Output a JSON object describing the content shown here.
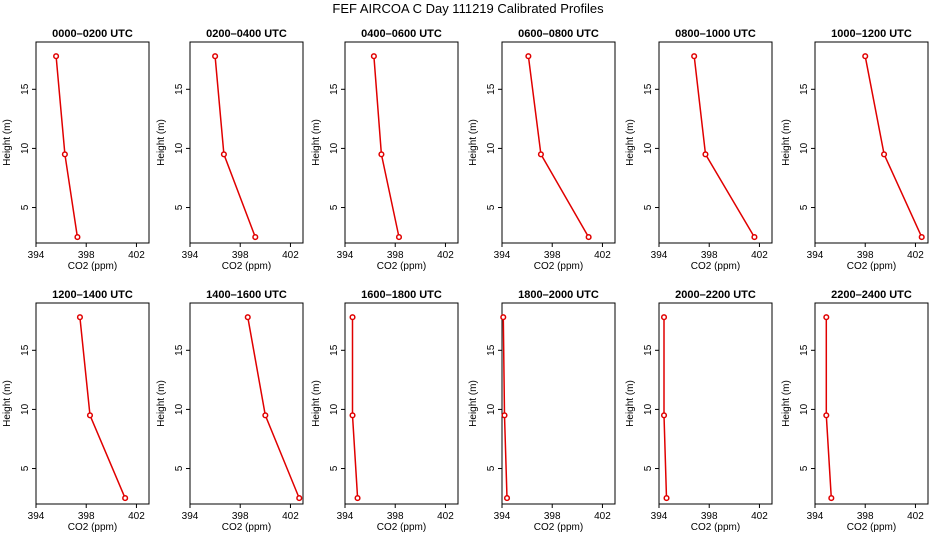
{
  "figure": {
    "title": "FEF AIRCOA C  Day 111219  Calibrated Profiles"
  },
  "chart_data": [
    {
      "type": "line",
      "title": "0000–0200 UTC",
      "xlabel": "CO2 (ppm)",
      "ylabel": "Height (m)",
      "xlim": [
        394,
        403
      ],
      "ylim": [
        2,
        19
      ],
      "xticks": [
        394,
        398,
        402
      ],
      "yticks": [
        5,
        10,
        15
      ],
      "grid": false,
      "series": [
        {
          "x": [
            395.6,
            396.3,
            397.3
          ],
          "y": [
            17.8,
            9.5,
            2.5
          ]
        }
      ]
    },
    {
      "type": "line",
      "title": "0200–0400 UTC",
      "xlabel": "CO2 (ppm)",
      "ylabel": "Height (m)",
      "xlim": [
        394,
        403
      ],
      "ylim": [
        2,
        19
      ],
      "xticks": [
        394,
        398,
        402
      ],
      "yticks": [
        5,
        10,
        15
      ],
      "grid": false,
      "series": [
        {
          "x": [
            396.0,
            396.7,
            399.2
          ],
          "y": [
            17.8,
            9.5,
            2.5
          ]
        }
      ]
    },
    {
      "type": "line",
      "title": "0400–0600 UTC",
      "xlabel": "CO2 (ppm)",
      "ylabel": "Height (m)",
      "xlim": [
        394,
        403
      ],
      "ylim": [
        2,
        19
      ],
      "xticks": [
        394,
        398,
        402
      ],
      "yticks": [
        5,
        10,
        15
      ],
      "grid": false,
      "series": [
        {
          "x": [
            396.3,
            396.9,
            398.3
          ],
          "y": [
            17.8,
            9.5,
            2.5
          ]
        }
      ]
    },
    {
      "type": "line",
      "title": "0600–0800 UTC",
      "xlabel": "CO2 (ppm)",
      "ylabel": "Height (m)",
      "xlim": [
        394,
        403
      ],
      "ylim": [
        2,
        19
      ],
      "xticks": [
        394,
        398,
        402
      ],
      "yticks": [
        5,
        10,
        15
      ],
      "grid": false,
      "series": [
        {
          "x": [
            396.1,
            397.1,
            400.9
          ],
          "y": [
            17.8,
            9.5,
            2.5
          ]
        }
      ]
    },
    {
      "type": "line",
      "title": "0800–1000 UTC",
      "xlabel": "CO2 (ppm)",
      "ylabel": "Height (m)",
      "xlim": [
        394,
        403
      ],
      "ylim": [
        2,
        19
      ],
      "xticks": [
        394,
        398,
        402
      ],
      "yticks": [
        5,
        10,
        15
      ],
      "grid": false,
      "series": [
        {
          "x": [
            396.8,
            397.7,
            401.6
          ],
          "y": [
            17.8,
            9.5,
            2.5
          ]
        }
      ]
    },
    {
      "type": "line",
      "title": "1000–1200 UTC",
      "xlabel": "CO2 (ppm)",
      "ylabel": "Height (m)",
      "xlim": [
        394,
        403
      ],
      "ylim": [
        2,
        19
      ],
      "xticks": [
        394,
        398,
        402
      ],
      "yticks": [
        5,
        10,
        15
      ],
      "grid": false,
      "series": [
        {
          "x": [
            398.0,
            399.5,
            402.5
          ],
          "y": [
            17.8,
            9.5,
            2.5
          ]
        }
      ]
    },
    {
      "type": "line",
      "title": "1200–1400 UTC",
      "xlabel": "CO2 (ppm)",
      "ylabel": "Height (m)",
      "xlim": [
        394,
        403
      ],
      "ylim": [
        2,
        19
      ],
      "xticks": [
        394,
        398,
        402
      ],
      "yticks": [
        5,
        10,
        15
      ],
      "grid": false,
      "series": [
        {
          "x": [
            397.5,
            398.3,
            401.1
          ],
          "y": [
            17.8,
            9.5,
            2.5
          ]
        }
      ]
    },
    {
      "type": "line",
      "title": "1400–1600 UTC",
      "xlabel": "CO2 (ppm)",
      "ylabel": "Height (m)",
      "xlim": [
        394,
        403
      ],
      "ylim": [
        2,
        19
      ],
      "xticks": [
        394,
        398,
        402
      ],
      "yticks": [
        5,
        10,
        15
      ],
      "grid": false,
      "series": [
        {
          "x": [
            398.6,
            400.0,
            402.7
          ],
          "y": [
            17.8,
            9.5,
            2.5
          ]
        }
      ]
    },
    {
      "type": "line",
      "title": "1600–1800 UTC",
      "xlabel": "CO2 (ppm)",
      "ylabel": "Height (m)",
      "xlim": [
        394,
        403
      ],
      "ylim": [
        2,
        19
      ],
      "xticks": [
        394,
        398,
        402
      ],
      "yticks": [
        5,
        10,
        15
      ],
      "grid": false,
      "series": [
        {
          "x": [
            394.6,
            394.6,
            395.0
          ],
          "y": [
            17.8,
            9.5,
            2.5
          ]
        }
      ]
    },
    {
      "type": "line",
      "title": "1800–2000 UTC",
      "xlabel": "CO2 (ppm)",
      "ylabel": "Height (m)",
      "xlim": [
        394,
        403
      ],
      "ylim": [
        2,
        19
      ],
      "xticks": [
        394,
        398,
        402
      ],
      "yticks": [
        5,
        10,
        15
      ],
      "grid": false,
      "series": [
        {
          "x": [
            394.1,
            394.2,
            394.4
          ],
          "y": [
            17.8,
            9.5,
            2.5
          ]
        }
      ]
    },
    {
      "type": "line",
      "title": "2000–2200 UTC",
      "xlabel": "CO2 (ppm)",
      "ylabel": "Height (m)",
      "xlim": [
        394,
        403
      ],
      "ylim": [
        2,
        19
      ],
      "xticks": [
        394,
        398,
        402
      ],
      "yticks": [
        5,
        10,
        15
      ],
      "grid": false,
      "series": [
        {
          "x": [
            394.4,
            394.4,
            394.6
          ],
          "y": [
            17.8,
            9.5,
            2.5
          ]
        }
      ]
    },
    {
      "type": "line",
      "title": "2200–2400 UTC",
      "xlabel": "CO2 (ppm)",
      "ylabel": "Height (m)",
      "xlim": [
        394,
        403
      ],
      "ylim": [
        2,
        19
      ],
      "xticks": [
        394,
        398,
        402
      ],
      "yticks": [
        5,
        10,
        15
      ],
      "grid": false,
      "series": [
        {
          "x": [
            394.9,
            394.9,
            395.3
          ],
          "y": [
            17.8,
            9.5,
            2.5
          ]
        }
      ]
    }
  ],
  "colors": {
    "series": "#e00000",
    "marker_fill": "#ffffff",
    "axis": "#000000"
  },
  "marker": "open-circle"
}
